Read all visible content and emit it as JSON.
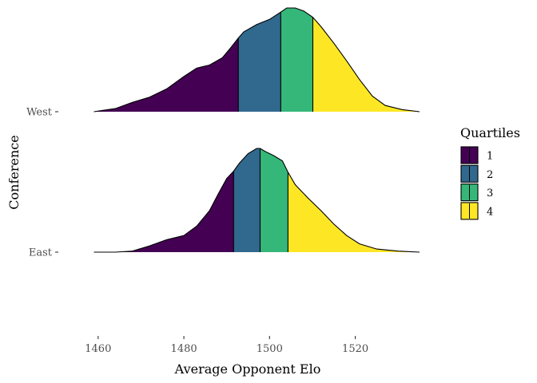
{
  "chart_data": {
    "type": "ridgeline",
    "xlabel": "Average Opponent Elo",
    "ylabel": "Conference",
    "xlim": [
      1455,
      1535
    ],
    "x_ticks": [
      1460,
      1480,
      1500,
      1520
    ],
    "categories": [
      "East",
      "West"
    ],
    "grid": false,
    "legend": {
      "title": "Quartiles",
      "placement": "right",
      "entries": [
        {
          "label": "1",
          "color": "#440154"
        },
        {
          "label": "2",
          "color": "#31688e"
        },
        {
          "label": "3",
          "color": "#35b779"
        },
        {
          "label": "4",
          "color": "#fde725"
        }
      ]
    },
    "series": [
      {
        "name": "West",
        "quartile_breaks": [
          1492.7,
          1502.6,
          1510.1
        ],
        "density": {
          "x": [
            1459,
            1464,
            1468,
            1472,
            1476,
            1480,
            1483,
            1486,
            1489,
            1491,
            1492.7,
            1494,
            1497,
            1500,
            1502.6,
            1504,
            1506,
            1508,
            1510.1,
            1512,
            1515,
            1518,
            1521,
            1524,
            1527,
            1531,
            1535
          ],
          "y": [
            0.0,
            0.03,
            0.09,
            0.14,
            0.22,
            0.34,
            0.42,
            0.45,
            0.52,
            0.62,
            0.71,
            0.77,
            0.84,
            0.89,
            0.96,
            1.0,
            1.0,
            0.97,
            0.91,
            0.82,
            0.66,
            0.49,
            0.31,
            0.15,
            0.06,
            0.02,
            0.0
          ]
        }
      },
      {
        "name": "East",
        "quartile_breaks": [
          1491.6,
          1497.8,
          1504.3
        ],
        "density": {
          "x": [
            1459,
            1464,
            1468,
            1472,
            1476,
            1480,
            1483,
            1486,
            1488,
            1490,
            1491.6,
            1493,
            1495,
            1497,
            1497.8,
            1499,
            1501,
            1503,
            1504.3,
            1506,
            1509,
            1512,
            1515,
            1518,
            1521,
            1525,
            1530,
            1535
          ],
          "y": [
            0.0,
            0.0,
            0.01,
            0.06,
            0.12,
            0.16,
            0.25,
            0.4,
            0.56,
            0.71,
            0.78,
            0.86,
            0.95,
            1.0,
            1.0,
            0.97,
            0.93,
            0.88,
            0.77,
            0.65,
            0.52,
            0.4,
            0.27,
            0.16,
            0.08,
            0.03,
            0.01,
            0.0
          ]
        }
      }
    ]
  }
}
